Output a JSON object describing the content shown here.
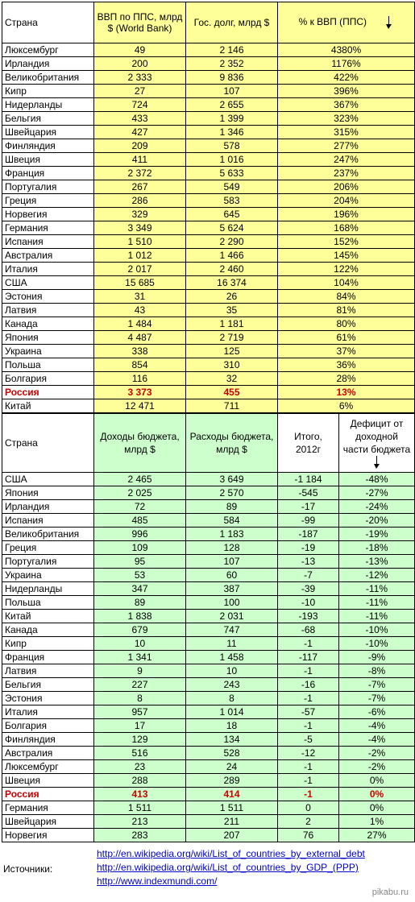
{
  "table1": {
    "headers": {
      "country": "Страна",
      "gdp": "ВВП по ППС, млрд $ (World Bank)",
      "debt": "Гос. долг, млрд $",
      "pct": "% к ВВП (ППС)"
    },
    "rows": [
      {
        "country": "Люксембург",
        "gdp": "49",
        "debt": "2 146",
        "pct": "4380%"
      },
      {
        "country": "Ирландия",
        "gdp": "200",
        "debt": "2 352",
        "pct": "1176%"
      },
      {
        "country": "Великобритания",
        "gdp": "2 333",
        "debt": "9 836",
        "pct": "422%"
      },
      {
        "country": "Кипр",
        "gdp": "27",
        "debt": "107",
        "pct": "396%"
      },
      {
        "country": "Нидерланды",
        "gdp": "724",
        "debt": "2 655",
        "pct": "367%"
      },
      {
        "country": "Бельгия",
        "gdp": "433",
        "debt": "1 399",
        "pct": "323%"
      },
      {
        "country": "Швейцария",
        "gdp": "427",
        "debt": "1 346",
        "pct": "315%"
      },
      {
        "country": "Финляндия",
        "gdp": "209",
        "debt": "578",
        "pct": "277%"
      },
      {
        "country": "Швеция",
        "gdp": "411",
        "debt": "1 016",
        "pct": "247%"
      },
      {
        "country": "Франция",
        "gdp": "2 372",
        "debt": "5 633",
        "pct": "237%"
      },
      {
        "country": "Португалия",
        "gdp": "267",
        "debt": "549",
        "pct": "206%"
      },
      {
        "country": "Греция",
        "gdp": "286",
        "debt": "583",
        "pct": "204%"
      },
      {
        "country": "Норвегия",
        "gdp": "329",
        "debt": "645",
        "pct": "196%"
      },
      {
        "country": "Германия",
        "gdp": "3 349",
        "debt": "5 624",
        "pct": "168%"
      },
      {
        "country": "Испания",
        "gdp": "1 510",
        "debt": "2 290",
        "pct": "152%"
      },
      {
        "country": "Австралия",
        "gdp": "1 012",
        "debt": "1 466",
        "pct": "145%"
      },
      {
        "country": "Италия",
        "gdp": "2 017",
        "debt": "2 460",
        "pct": "122%"
      },
      {
        "country": "США",
        "gdp": "15 685",
        "debt": "16 374",
        "pct": "104%"
      },
      {
        "country": "Эстония",
        "gdp": "31",
        "debt": "26",
        "pct": "84%"
      },
      {
        "country": "Латвия",
        "gdp": "43",
        "debt": "35",
        "pct": "81%"
      },
      {
        "country": "Канада",
        "gdp": "1 484",
        "debt": "1 181",
        "pct": "80%"
      },
      {
        "country": "Япония",
        "gdp": "4 487",
        "debt": "2 719",
        "pct": "61%"
      },
      {
        "country": "Украина",
        "gdp": "338",
        "debt": "125",
        "pct": "37%"
      },
      {
        "country": "Польша",
        "gdp": "854",
        "debt": "310",
        "pct": "36%"
      },
      {
        "country": "Болгария",
        "gdp": "116",
        "debt": "32",
        "pct": "28%"
      },
      {
        "country": "Россия",
        "gdp": "3 373",
        "debt": "455",
        "pct": "13%"
      },
      {
        "country": "Китай",
        "gdp": "12 471",
        "debt": "711",
        "pct": "6%"
      }
    ]
  },
  "table2": {
    "headers": {
      "country": "Страна",
      "income": "Доходы бюджета, млрд $",
      "expense": "Расходы бюджета, млрд $",
      "total": "Итого, 2012г",
      "deficit": "Дефицит от доходной части бюджета"
    },
    "rows": [
      {
        "country": "США",
        "income": "2 465",
        "expense": "3 649",
        "total": "-1 184",
        "deficit": "-48%"
      },
      {
        "country": "Япония",
        "income": "2 025",
        "expense": "2 570",
        "total": "-545",
        "deficit": "-27%"
      },
      {
        "country": "Ирландия",
        "income": "72",
        "expense": "89",
        "total": "-17",
        "deficit": "-24%"
      },
      {
        "country": "Испания",
        "income": "485",
        "expense": "584",
        "total": "-99",
        "deficit": "-20%"
      },
      {
        "country": "Великобритания",
        "income": "996",
        "expense": "1 183",
        "total": "-187",
        "deficit": "-19%"
      },
      {
        "country": "Греция",
        "income": "109",
        "expense": "128",
        "total": "-19",
        "deficit": "-18%"
      },
      {
        "country": "Португалия",
        "income": "95",
        "expense": "107",
        "total": "-13",
        "deficit": "-13%"
      },
      {
        "country": "Украина",
        "income": "53",
        "expense": "60",
        "total": "-7",
        "deficit": "-12%"
      },
      {
        "country": "Нидерланды",
        "income": "347",
        "expense": "387",
        "total": "-39",
        "deficit": "-11%"
      },
      {
        "country": "Польша",
        "income": "89",
        "expense": "100",
        "total": "-10",
        "deficit": "-11%"
      },
      {
        "country": "Китай",
        "income": "1 838",
        "expense": "2 031",
        "total": "-193",
        "deficit": "-11%"
      },
      {
        "country": "Канада",
        "income": "679",
        "expense": "747",
        "total": "-68",
        "deficit": "-10%"
      },
      {
        "country": "Кипр",
        "income": "10",
        "expense": "11",
        "total": "-1",
        "deficit": "-10%"
      },
      {
        "country": "Франция",
        "income": "1 341",
        "expense": "1 458",
        "total": "-117",
        "deficit": "-9%"
      },
      {
        "country": "Латвия",
        "income": "9",
        "expense": "10",
        "total": "-1",
        "deficit": "-8%"
      },
      {
        "country": "Бельгия",
        "income": "227",
        "expense": "243",
        "total": "-16",
        "deficit": "-7%"
      },
      {
        "country": "Эстония",
        "income": "8",
        "expense": "8",
        "total": "-1",
        "deficit": "-7%"
      },
      {
        "country": "Италия",
        "income": "957",
        "expense": "1 014",
        "total": "-57",
        "deficit": "-6%"
      },
      {
        "country": "Болгария",
        "income": "17",
        "expense": "18",
        "total": "-1",
        "deficit": "-4%"
      },
      {
        "country": "Финляндия",
        "income": "129",
        "expense": "134",
        "total": "-5",
        "deficit": "-4%"
      },
      {
        "country": "Австралия",
        "income": "516",
        "expense": "528",
        "total": "-12",
        "deficit": "-2%"
      },
      {
        "country": "Люксембург",
        "income": "23",
        "expense": "24",
        "total": "-1",
        "deficit": "-2%"
      },
      {
        "country": "Швеция",
        "income": "288",
        "expense": "289",
        "total": "-1",
        "deficit": "0%"
      },
      {
        "country": "Россия",
        "income": "413",
        "expense": "414",
        "total": "-1",
        "deficit": "0%"
      },
      {
        "country": "Германия",
        "income": "1 511",
        "expense": "1 511",
        "total": "0",
        "deficit": "0%"
      },
      {
        "country": "Швейцария",
        "income": "213",
        "expense": "211",
        "total": "2",
        "deficit": "1%"
      },
      {
        "country": "Норвегия",
        "income": "283",
        "expense": "207",
        "total": "76",
        "deficit": "27%"
      }
    ]
  },
  "highlight_country": "Россия",
  "highlight_color": "#cc0000",
  "yellow": "#ffff99",
  "green": "#ccffcc",
  "sources": {
    "label": "Источники:",
    "links": [
      "http://en.wikipedia.org/wiki/List_of_countries_by_external_debt",
      "http://en.wikipedia.org/wiki/List_of_countries_by_GDP_(PPP)",
      "http://www.indexmundi.com/"
    ]
  },
  "watermark": "pikabu.ru"
}
